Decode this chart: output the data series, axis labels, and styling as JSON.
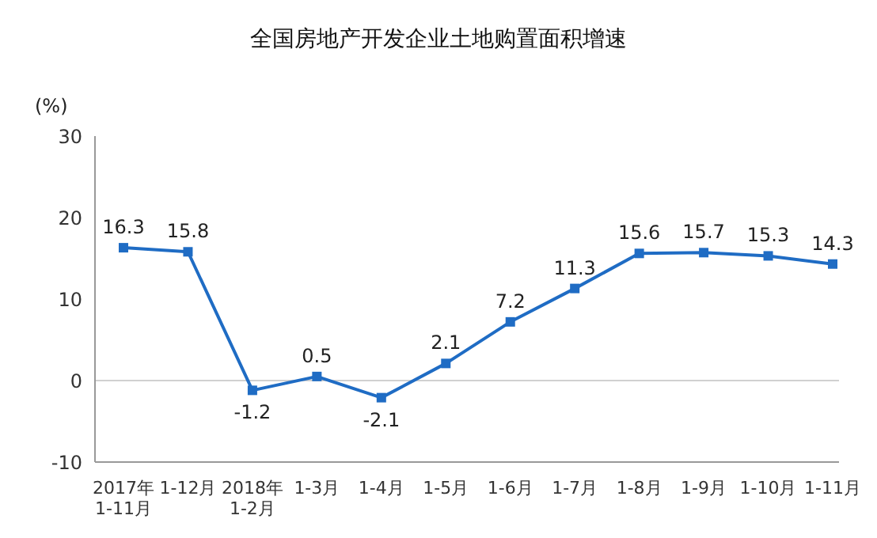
{
  "chart_data": {
    "type": "line",
    "title": "全国房地产开发企业土地购置面积增速",
    "ylabel": "(%)",
    "categories": [
      "2017年\n1-11月",
      "1-12月",
      "2018年\n1-2月",
      "1-3月",
      "1-4月",
      "1-5月",
      "1-6月",
      "1-7月",
      "1-8月",
      "1-9月",
      "1-10月",
      "1-11月"
    ],
    "series": [
      {
        "color": "#1f6cc4",
        "values": [
          16.3,
          15.8,
          -1.2,
          0.5,
          -2.1,
          2.1,
          7.2,
          11.3,
          15.6,
          15.7,
          15.3,
          14.3
        ]
      }
    ],
    "ylim": [
      -10,
      30
    ],
    "yticks": [
      -10,
      0,
      10,
      20,
      30
    ],
    "grid": false,
    "marker": "square",
    "line_style": "solid",
    "data_labels": true,
    "ref_lines": [
      {
        "axis": "y",
        "value": 0,
        "color": "#d0d0d0"
      }
    ]
  }
}
